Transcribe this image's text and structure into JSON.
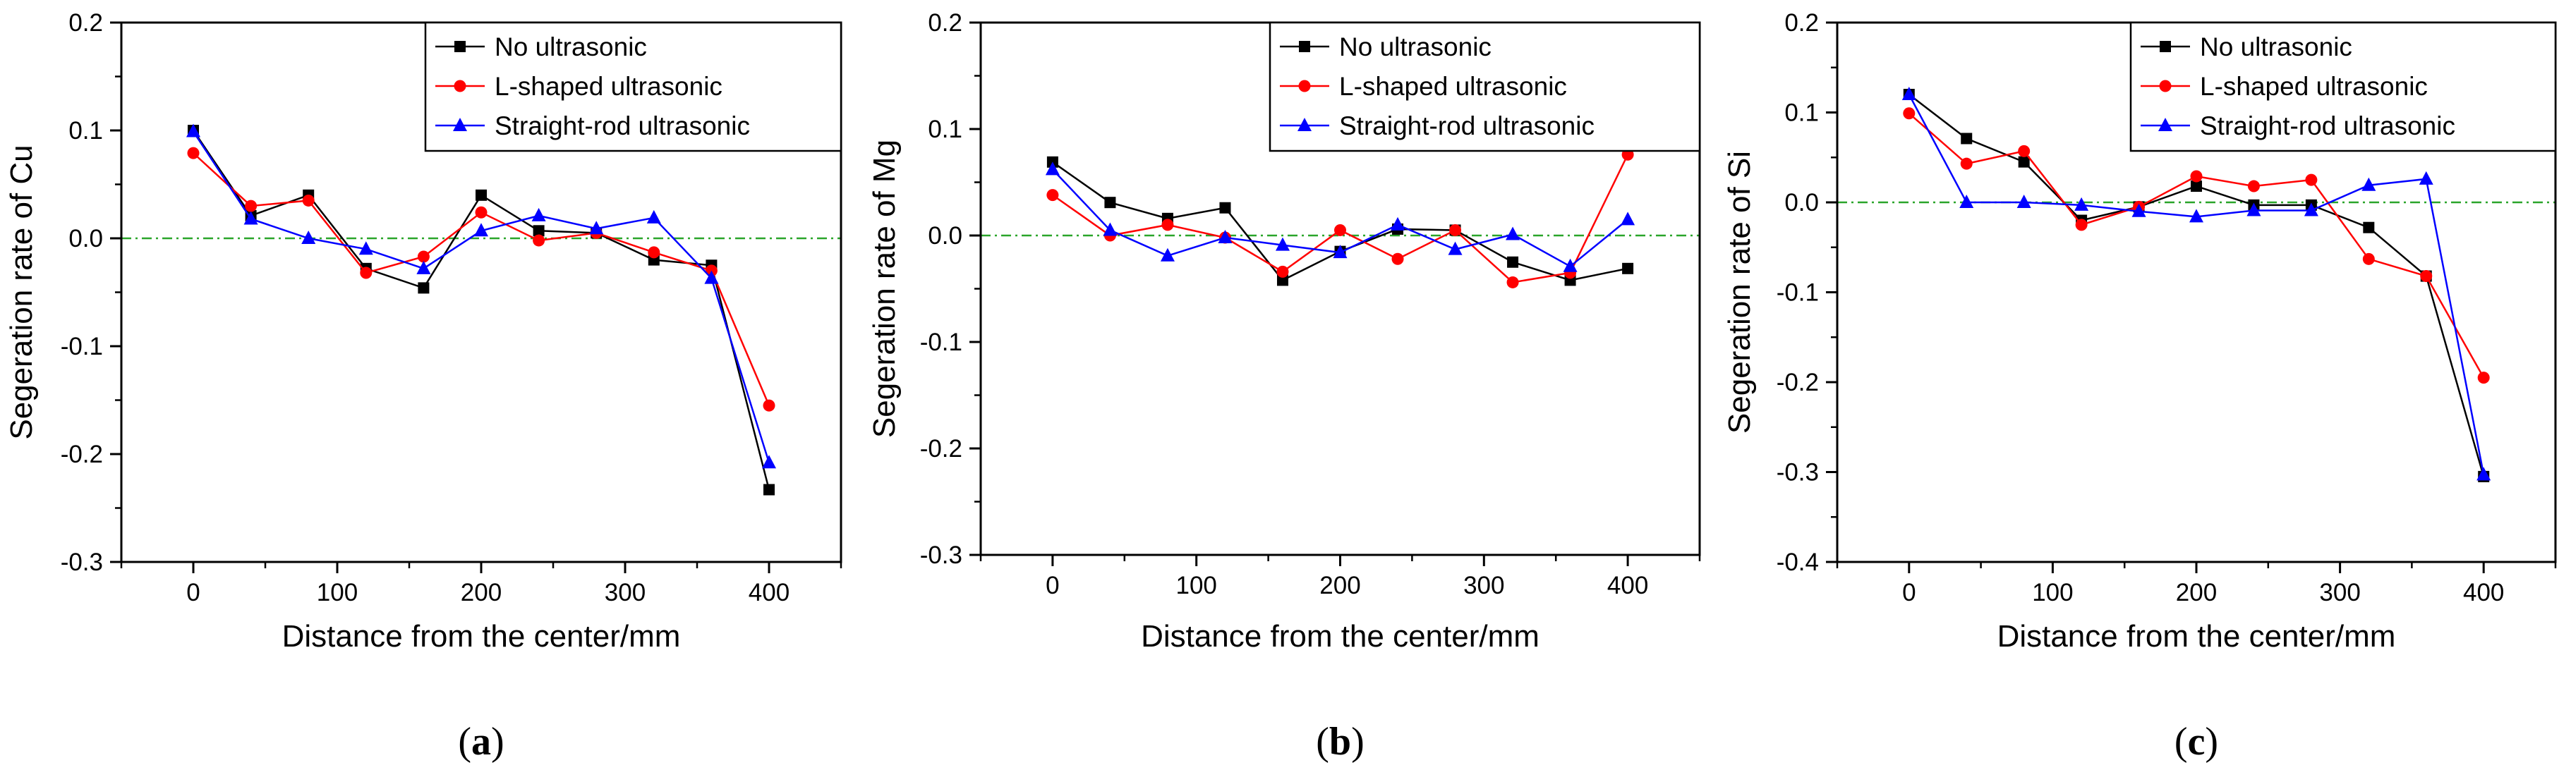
{
  "chart_data": [
    {
      "type": "line",
      "panel_label": "(a)",
      "xlabel": "Distance from the center/mm",
      "ylabel": "Segeration rate of Cu",
      "xlim": [
        -50,
        450
      ],
      "ylim": [
        -0.3,
        0.2
      ],
      "xticks": [
        0,
        100,
        200,
        300,
        400
      ],
      "xtick_labels": [
        "0",
        "100",
        "200",
        "300",
        "400"
      ],
      "yticks": [
        -0.3,
        -0.2,
        -0.1,
        0.0,
        0.1,
        0.2
      ],
      "ytick_labels": [
        "-0.3",
        "-0.2",
        "-0.1",
        "0.0",
        "0.1",
        "0.2"
      ],
      "reference_line": 0,
      "legend_position": "top-right",
      "x": [
        0,
        40,
        80,
        120,
        160,
        200,
        240,
        280,
        320,
        360,
        400
      ],
      "series": [
        {
          "name": "No ultrasonic",
          "color": "#000000",
          "marker": "square",
          "values": [
            0.1,
            0.021,
            0.04,
            -0.028,
            -0.046,
            0.04,
            0.007,
            0.005,
            -0.02,
            -0.025,
            -0.233
          ]
        },
        {
          "name": "L-shaped ultrasonic",
          "color": "#ff0000",
          "marker": "circle",
          "values": [
            0.079,
            0.03,
            0.035,
            -0.032,
            -0.017,
            0.024,
            -0.002,
            0.005,
            -0.013,
            -0.03,
            -0.155
          ]
        },
        {
          "name": "Straight-rod ultrasonic",
          "color": "#0000ff",
          "marker": "triangle",
          "values": [
            0.099,
            0.018,
            0.0,
            -0.01,
            -0.028,
            0.007,
            0.021,
            0.009,
            0.019,
            -0.037,
            -0.208
          ]
        }
      ]
    },
    {
      "type": "line",
      "panel_label": "(b)",
      "xlabel": "Distance from the center/mm",
      "ylabel": "Segeration rate of Mg",
      "xlim": [
        -50,
        450
      ],
      "ylim": [
        -0.3,
        0.2
      ],
      "xticks": [
        0,
        100,
        200,
        300,
        400
      ],
      "xtick_labels": [
        "0",
        "100",
        "200",
        "300",
        "400"
      ],
      "yticks": [
        -0.3,
        -0.2,
        -0.1,
        0.0,
        0.1,
        0.2
      ],
      "ytick_labels": [
        "-0.3",
        "-0.2",
        "-0.1",
        "0.0",
        "0.1",
        "0.2"
      ],
      "reference_line": 0,
      "legend_position": "top-right",
      "x": [
        0,
        40,
        80,
        120,
        160,
        200,
        240,
        280,
        320,
        360,
        400
      ],
      "series": [
        {
          "name": "No ultrasonic",
          "color": "#000000",
          "marker": "square",
          "values": [
            0.069,
            0.031,
            0.016,
            0.026,
            -0.042,
            -0.015,
            0.006,
            0.005,
            -0.025,
            -0.042,
            -0.031
          ]
        },
        {
          "name": "L-shaped ultrasonic",
          "color": "#ff0000",
          "marker": "circle",
          "values": [
            0.038,
            0.0,
            0.01,
            -0.002,
            -0.034,
            0.005,
            -0.022,
            0.005,
            -0.044,
            -0.035,
            0.076
          ]
        },
        {
          "name": "Straight-rod ultrasonic",
          "color": "#0000ff",
          "marker": "triangle",
          "values": [
            0.062,
            0.005,
            -0.019,
            -0.002,
            -0.009,
            -0.016,
            0.01,
            -0.013,
            0.001,
            -0.029,
            0.015
          ]
        }
      ]
    },
    {
      "type": "line",
      "panel_label": "(c)",
      "xlabel": "Distance from the center/mm",
      "ylabel": "Segeration rate of Si",
      "xlim": [
        -50,
        450
      ],
      "ylim": [
        -0.4,
        0.2
      ],
      "xticks": [
        0,
        100,
        200,
        300,
        400
      ],
      "xtick_labels": [
        "0",
        "100",
        "200",
        "300",
        "400"
      ],
      "yticks": [
        -0.4,
        -0.3,
        -0.2,
        -0.1,
        0.0,
        0.1,
        0.2
      ],
      "ytick_labels": [
        "-0.4",
        "-0.3",
        "-0.2",
        "-0.1",
        "0.0",
        "0.1",
        "0.2"
      ],
      "reference_line": 0,
      "legend_position": "top-right",
      "x": [
        0,
        40,
        80,
        120,
        160,
        200,
        240,
        280,
        320,
        360,
        400
      ],
      "series": [
        {
          "name": "No ultrasonic",
          "color": "#000000",
          "marker": "square",
          "values": [
            0.12,
            0.071,
            0.045,
            -0.02,
            -0.005,
            0.018,
            -0.003,
            -0.003,
            -0.028,
            -0.082,
            -0.305
          ]
        },
        {
          "name": "L-shaped ultrasonic",
          "color": "#ff0000",
          "marker": "circle",
          "values": [
            0.099,
            0.043,
            0.057,
            -0.025,
            -0.005,
            0.029,
            0.018,
            0.025,
            -0.063,
            -0.082,
            -0.195
          ]
        },
        {
          "name": "Straight-rod ultrasonic",
          "color": "#0000ff",
          "marker": "triangle",
          "values": [
            0.12,
            0.0,
            0.0,
            -0.003,
            -0.01,
            -0.016,
            -0.009,
            -0.009,
            0.019,
            0.026,
            -0.303
          ]
        }
      ]
    }
  ]
}
